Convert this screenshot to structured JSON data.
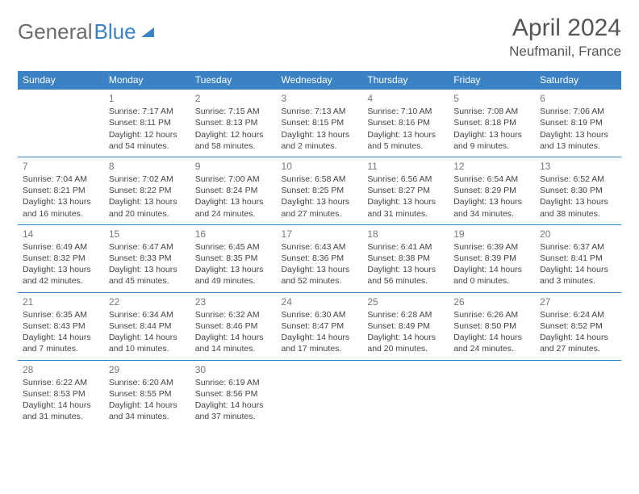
{
  "logo": {
    "text1": "General",
    "text2": "Blue"
  },
  "title": "April 2024",
  "location": "Neufmanil, France",
  "colors": {
    "header_bg": "#3b82c4",
    "header_text": "#ffffff",
    "border": "#3b82c4",
    "body_text": "#444444",
    "daynum": "#777777",
    "logo_gray": "#6b6b6b",
    "logo_blue": "#3b82c4",
    "title_color": "#555555"
  },
  "weekdays": [
    "Sunday",
    "Monday",
    "Tuesday",
    "Wednesday",
    "Thursday",
    "Friday",
    "Saturday"
  ],
  "start_offset": 1,
  "days": [
    {
      "n": 1,
      "sunrise": "7:17 AM",
      "sunset": "8:11 PM",
      "daylight": "12 hours and 54 minutes."
    },
    {
      "n": 2,
      "sunrise": "7:15 AM",
      "sunset": "8:13 PM",
      "daylight": "12 hours and 58 minutes."
    },
    {
      "n": 3,
      "sunrise": "7:13 AM",
      "sunset": "8:15 PM",
      "daylight": "13 hours and 2 minutes."
    },
    {
      "n": 4,
      "sunrise": "7:10 AM",
      "sunset": "8:16 PM",
      "daylight": "13 hours and 5 minutes."
    },
    {
      "n": 5,
      "sunrise": "7:08 AM",
      "sunset": "8:18 PM",
      "daylight": "13 hours and 9 minutes."
    },
    {
      "n": 6,
      "sunrise": "7:06 AM",
      "sunset": "8:19 PM",
      "daylight": "13 hours and 13 minutes."
    },
    {
      "n": 7,
      "sunrise": "7:04 AM",
      "sunset": "8:21 PM",
      "daylight": "13 hours and 16 minutes."
    },
    {
      "n": 8,
      "sunrise": "7:02 AM",
      "sunset": "8:22 PM",
      "daylight": "13 hours and 20 minutes."
    },
    {
      "n": 9,
      "sunrise": "7:00 AM",
      "sunset": "8:24 PM",
      "daylight": "13 hours and 24 minutes."
    },
    {
      "n": 10,
      "sunrise": "6:58 AM",
      "sunset": "8:25 PM",
      "daylight": "13 hours and 27 minutes."
    },
    {
      "n": 11,
      "sunrise": "6:56 AM",
      "sunset": "8:27 PM",
      "daylight": "13 hours and 31 minutes."
    },
    {
      "n": 12,
      "sunrise": "6:54 AM",
      "sunset": "8:29 PM",
      "daylight": "13 hours and 34 minutes."
    },
    {
      "n": 13,
      "sunrise": "6:52 AM",
      "sunset": "8:30 PM",
      "daylight": "13 hours and 38 minutes."
    },
    {
      "n": 14,
      "sunrise": "6:49 AM",
      "sunset": "8:32 PM",
      "daylight": "13 hours and 42 minutes."
    },
    {
      "n": 15,
      "sunrise": "6:47 AM",
      "sunset": "8:33 PM",
      "daylight": "13 hours and 45 minutes."
    },
    {
      "n": 16,
      "sunrise": "6:45 AM",
      "sunset": "8:35 PM",
      "daylight": "13 hours and 49 minutes."
    },
    {
      "n": 17,
      "sunrise": "6:43 AM",
      "sunset": "8:36 PM",
      "daylight": "13 hours and 52 minutes."
    },
    {
      "n": 18,
      "sunrise": "6:41 AM",
      "sunset": "8:38 PM",
      "daylight": "13 hours and 56 minutes."
    },
    {
      "n": 19,
      "sunrise": "6:39 AM",
      "sunset": "8:39 PM",
      "daylight": "14 hours and 0 minutes."
    },
    {
      "n": 20,
      "sunrise": "6:37 AM",
      "sunset": "8:41 PM",
      "daylight": "14 hours and 3 minutes."
    },
    {
      "n": 21,
      "sunrise": "6:35 AM",
      "sunset": "8:43 PM",
      "daylight": "14 hours and 7 minutes."
    },
    {
      "n": 22,
      "sunrise": "6:34 AM",
      "sunset": "8:44 PM",
      "daylight": "14 hours and 10 minutes."
    },
    {
      "n": 23,
      "sunrise": "6:32 AM",
      "sunset": "8:46 PM",
      "daylight": "14 hours and 14 minutes."
    },
    {
      "n": 24,
      "sunrise": "6:30 AM",
      "sunset": "8:47 PM",
      "daylight": "14 hours and 17 minutes."
    },
    {
      "n": 25,
      "sunrise": "6:28 AM",
      "sunset": "8:49 PM",
      "daylight": "14 hours and 20 minutes."
    },
    {
      "n": 26,
      "sunrise": "6:26 AM",
      "sunset": "8:50 PM",
      "daylight": "14 hours and 24 minutes."
    },
    {
      "n": 27,
      "sunrise": "6:24 AM",
      "sunset": "8:52 PM",
      "daylight": "14 hours and 27 minutes."
    },
    {
      "n": 28,
      "sunrise": "6:22 AM",
      "sunset": "8:53 PM",
      "daylight": "14 hours and 31 minutes."
    },
    {
      "n": 29,
      "sunrise": "6:20 AM",
      "sunset": "8:55 PM",
      "daylight": "14 hours and 34 minutes."
    },
    {
      "n": 30,
      "sunrise": "6:19 AM",
      "sunset": "8:56 PM",
      "daylight": "14 hours and 37 minutes."
    }
  ],
  "labels": {
    "sunrise": "Sunrise:",
    "sunset": "Sunset:",
    "daylight": "Daylight:"
  }
}
